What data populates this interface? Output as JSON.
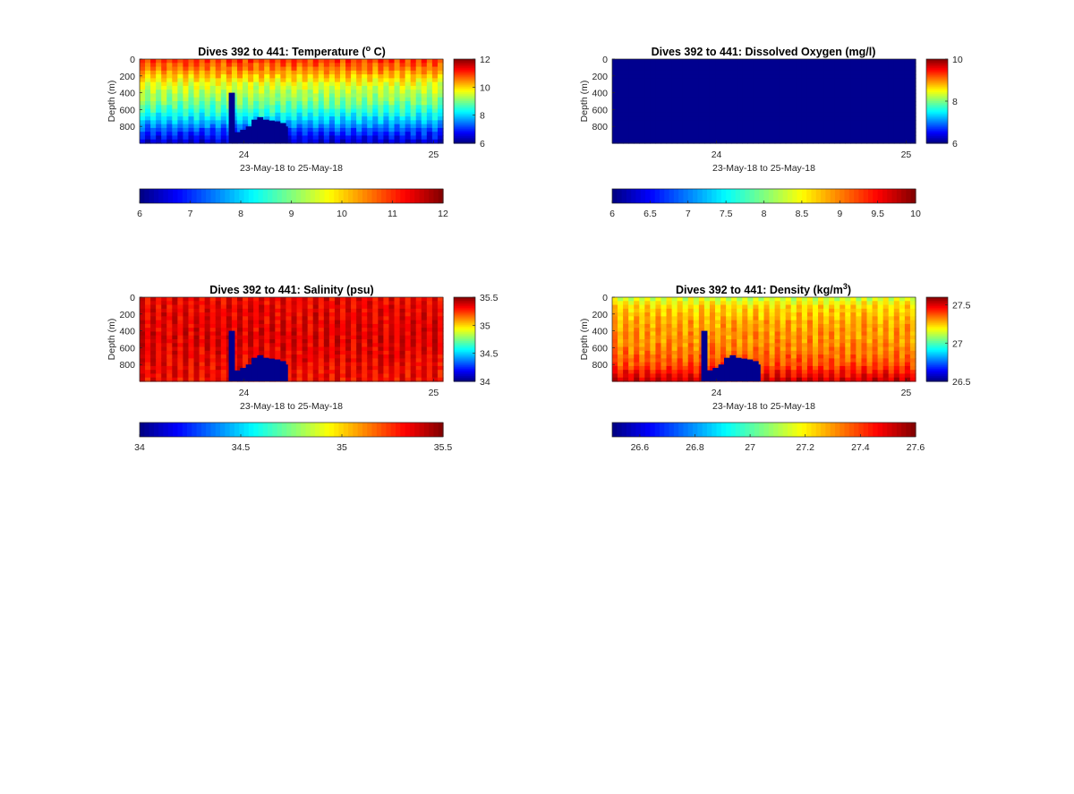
{
  "figure": {
    "background": "#ffffff",
    "colormap": "jet",
    "mask_color": "#00008f"
  },
  "chart_data": [
    {
      "type": "heatmap",
      "title": "Dives 392 to 441: Temperature (",
      "title_sup": "o",
      "title_end": " C)",
      "variable": "temperature",
      "xlabel": "23-May-18 to 25-May-18",
      "ylabel": "Depth (m)",
      "xlim": [
        23.45,
        25.05
      ],
      "x_ticks": [
        24,
        25
      ],
      "x_tick_labels": [
        "24",
        "25"
      ],
      "ylim": [
        0,
        1000
      ],
      "y_reversed": true,
      "y_ticks": [
        0,
        200,
        400,
        600,
        800
      ],
      "y_tick_labels": [
        "0",
        "200",
        "400",
        "600",
        "800"
      ],
      "clim": [
        6,
        12
      ],
      "colorbar_ticks": [
        6,
        8,
        10,
        12
      ],
      "colorbar_tick_labels": [
        "6",
        "8",
        "10",
        "12"
      ],
      "hcolorbar_ticks": [
        6,
        7,
        8,
        9,
        10,
        11,
        12
      ],
      "hcolorbar_tick_labels": [
        "6",
        "7",
        "8",
        "9",
        "10",
        "11",
        "12"
      ],
      "profile_depths_m": [
        0,
        100,
        200,
        300,
        400,
        500,
        600,
        700,
        800,
        900,
        1000
      ],
      "profile_values": [
        11.0,
        10.6,
        10.1,
        9.6,
        9.3,
        9.0,
        8.6,
        8.1,
        7.5,
        6.9,
        6.4
      ],
      "surface_note": "warmest near surface, coldest at depth"
    },
    {
      "type": "heatmap",
      "title": "Dives 392 to 441: Dissolved Oxygen (mg/l)",
      "title_sup": "",
      "title_end": "",
      "variable": "dissolved_oxygen",
      "xlabel": "23-May-18 to 25-May-18",
      "ylabel": "Depth (m)",
      "xlim": [
        23.45,
        25.05
      ],
      "x_ticks": [
        24,
        25
      ],
      "x_tick_labels": [
        "24",
        "25"
      ],
      "ylim": [
        0,
        1000
      ],
      "y_reversed": true,
      "y_ticks": [
        0,
        200,
        400,
        600,
        800
      ],
      "y_tick_labels": [
        "0",
        "200",
        "400",
        "600",
        "800"
      ],
      "clim": [
        6,
        10
      ],
      "colorbar_ticks": [
        6,
        8,
        10
      ],
      "colorbar_tick_labels": [
        "6",
        "8",
        "10"
      ],
      "hcolorbar_ticks": [
        6,
        6.5,
        7,
        7.5,
        8,
        8.5,
        9,
        9.5,
        10
      ],
      "hcolorbar_tick_labels": [
        "6",
        "6.5",
        "7",
        "7.5",
        "8",
        "8.5",
        "9",
        "9.5",
        "10"
      ],
      "profile_depths_m": [
        0,
        1000
      ],
      "profile_values": [
        5.5,
        5.5
      ],
      "surface_note": "entire field below color range"
    },
    {
      "type": "heatmap",
      "title": "Dives 392 to 441: Salinity (psu)",
      "title_sup": "",
      "title_end": "",
      "variable": "salinity",
      "xlabel": "23-May-18 to 25-May-18",
      "ylabel": "Depth (m)",
      "xlim": [
        23.45,
        25.05
      ],
      "x_ticks": [
        24,
        25
      ],
      "x_tick_labels": [
        "24",
        "25"
      ],
      "ylim": [
        0,
        1000
      ],
      "y_reversed": true,
      "y_ticks": [
        0,
        200,
        400,
        600,
        800
      ],
      "y_tick_labels": [
        "0",
        "200",
        "400",
        "600",
        "800"
      ],
      "clim": [
        34,
        35.5
      ],
      "colorbar_ticks": [
        34,
        34.5,
        35,
        35.5
      ],
      "colorbar_tick_labels": [
        "34",
        "34.5",
        "35",
        "35.5"
      ],
      "hcolorbar_ticks": [
        34,
        34.5,
        35,
        35.5
      ],
      "hcolorbar_tick_labels": [
        "34",
        "34.5",
        "35",
        "35.5"
      ],
      "profile_depths_m": [
        0,
        500,
        1000
      ],
      "profile_values": [
        35.33,
        35.36,
        35.31
      ],
      "surface_note": "nearly uniform high salinity"
    },
    {
      "type": "heatmap",
      "title": "Dives 392 to 441: Density (kg/m",
      "title_sup": "3",
      "title_end": ")",
      "variable": "density",
      "xlabel": "23-May-18 to 25-May-18",
      "ylabel": "Depth (m)",
      "xlim": [
        23.45,
        25.05
      ],
      "x_ticks": [
        24,
        25
      ],
      "x_tick_labels": [
        "24",
        "25"
      ],
      "ylim": [
        0,
        1000
      ],
      "y_reversed": true,
      "y_ticks": [
        0,
        200,
        400,
        600,
        800
      ],
      "y_tick_labels": [
        "0",
        "200",
        "400",
        "600",
        "800"
      ],
      "clim": [
        26.5,
        27.6
      ],
      "colorbar_ticks": [
        26.5,
        27,
        27.5
      ],
      "colorbar_tick_labels": [
        "26.5",
        "27",
        "27.5"
      ],
      "hcolorbar_ticks": [
        26.6,
        26.8,
        27.0,
        27.2,
        27.4,
        27.6
      ],
      "hcolorbar_tick_labels": [
        "26.6",
        "26.8",
        "27",
        "27.2",
        "27.4",
        "27.6"
      ],
      "profile_depths_m": [
        0,
        100,
        300,
        600,
        800,
        1000
      ],
      "profile_values": [
        27.12,
        27.22,
        27.28,
        27.32,
        27.38,
        27.52
      ],
      "surface_note": "density increasing with depth"
    }
  ],
  "missing_data_region": {
    "description": "shallow profiles (masked at bottom) for several dives near day 24",
    "x_range": [
      23.92,
      24.23
    ],
    "bottom_depths_m": [
      {
        "x": 23.92,
        "bottom": 400
      },
      {
        "x": 23.95,
        "bottom": 870
      },
      {
        "x": 23.98,
        "bottom": 840
      },
      {
        "x": 24.01,
        "bottom": 800
      },
      {
        "x": 24.04,
        "bottom": 720
      },
      {
        "x": 24.07,
        "bottom": 690
      },
      {
        "x": 24.1,
        "bottom": 720
      },
      {
        "x": 24.13,
        "bottom": 730
      },
      {
        "x": 24.16,
        "bottom": 740
      },
      {
        "x": 24.19,
        "bottom": 760
      },
      {
        "x": 24.22,
        "bottom": 800
      }
    ]
  }
}
